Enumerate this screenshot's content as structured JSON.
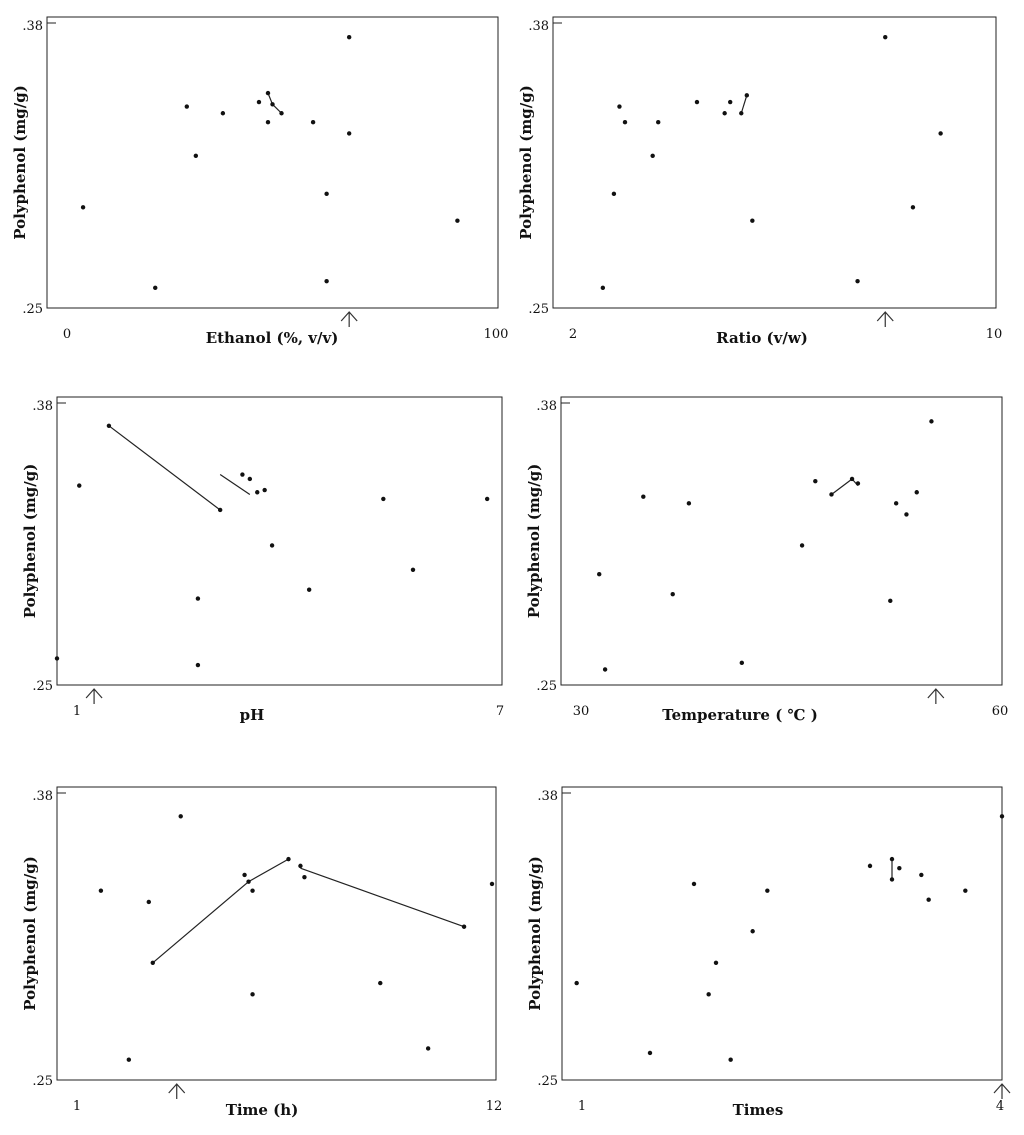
{
  "chart_data": [
    {
      "type": "scatter",
      "title": "",
      "xlabel": "Ethanol (%, v/v)",
      "ylabel": "Polyphenol (mg/g)",
      "xlim": [
        0,
        100
      ],
      "ylim": [
        0.25,
        0.38
      ],
      "x_tick_labels": [
        "0",
        "100"
      ],
      "y_tick_labels": [
        ".38",
        ".25"
      ],
      "arrow_at": 67,
      "points": [
        [
          8,
          0.295
        ],
        [
          24,
          0.259
        ],
        [
          31,
          0.34
        ],
        [
          33,
          0.318
        ],
        [
          39,
          0.337
        ],
        [
          47,
          0.342
        ],
        [
          49,
          0.346
        ],
        [
          49,
          0.333
        ],
        [
          50,
          0.341
        ],
        [
          52,
          0.337
        ],
        [
          59,
          0.333
        ],
        [
          62,
          0.262
        ],
        [
          62,
          0.301
        ],
        [
          67,
          0.371
        ],
        [
          67,
          0.328
        ],
        [
          91,
          0.289
        ]
      ],
      "segments": [
        [
          [
            49,
            0.346
          ],
          [
            50,
            0.341
          ]
        ],
        [
          [
            50,
            0.341
          ],
          [
            52,
            0.337
          ]
        ]
      ]
    },
    {
      "type": "scatter",
      "title": "",
      "xlabel": "Ratio (v/w)",
      "ylabel": "Polyphenol (mg/g)",
      "xlim": [
        2,
        10
      ],
      "ylim": [
        0.25,
        0.38
      ],
      "x_tick_labels": [
        "2",
        "10"
      ],
      "y_tick_labels": [
        ".38",
        ".25"
      ],
      "arrow_at": 8.0,
      "points": [
        [
          2.9,
          0.259
        ],
        [
          3.1,
          0.301
        ],
        [
          3.2,
          0.34
        ],
        [
          3.3,
          0.333
        ],
        [
          3.8,
          0.318
        ],
        [
          3.9,
          0.333
        ],
        [
          4.6,
          0.342
        ],
        [
          5.1,
          0.337
        ],
        [
          5.2,
          0.342
        ],
        [
          5.4,
          0.337
        ],
        [
          5.5,
          0.345
        ],
        [
          5.6,
          0.289
        ],
        [
          7.5,
          0.262
        ],
        [
          8.0,
          0.371
        ],
        [
          8.5,
          0.295
        ],
        [
          9.0,
          0.328
        ]
      ],
      "segments": [
        [
          [
            5.4,
            0.337
          ],
          [
            5.5,
            0.345
          ]
        ]
      ]
    },
    {
      "type": "scatter",
      "title": "",
      "xlabel": "pH",
      "ylabel": "Polyphenol (mg/g)",
      "xlim": [
        1,
        7
      ],
      "ylim": [
        0.25,
        0.38
      ],
      "x_tick_labels": [
        "1",
        "7"
      ],
      "y_tick_labels": [
        ".38",
        ".25"
      ],
      "arrow_at": 1.5,
      "points": [
        [
          1.0,
          0.262
        ],
        [
          1.3,
          0.34
        ],
        [
          1.7,
          0.367
        ],
        [
          2.9,
          0.259
        ],
        [
          2.9,
          0.289
        ],
        [
          3.2,
          0.329
        ],
        [
          3.5,
          0.345
        ],
        [
          3.6,
          0.343
        ],
        [
          3.7,
          0.337
        ],
        [
          3.8,
          0.338
        ],
        [
          3.9,
          0.313
        ],
        [
          4.4,
          0.293
        ],
        [
          5.4,
          0.334
        ],
        [
          5.8,
          0.302
        ],
        [
          6.8,
          0.334
        ]
      ],
      "segments": [
        [
          [
            1.7,
            0.367
          ],
          [
            3.2,
            0.329
          ]
        ],
        [
          [
            3.2,
            0.345
          ],
          [
            3.6,
            0.336
          ]
        ]
      ]
    },
    {
      "type": "scatter",
      "title": "",
      "xlabel": "Temperature ( ℃ )",
      "ylabel": "Polyphenol (mg/g)",
      "xlim": [
        30,
        60
      ],
      "ylim": [
        0.25,
        0.38
      ],
      "x_tick_labels": [
        "30",
        "60"
      ],
      "y_tick_labels": [
        ".38",
        ".25"
      ],
      "arrow_at": 55.5,
      "points": [
        [
          32.6,
          0.3
        ],
        [
          33.0,
          0.257
        ],
        [
          35.6,
          0.335
        ],
        [
          37.6,
          0.291
        ],
        [
          38.7,
          0.332
        ],
        [
          42.3,
          0.26
        ],
        [
          46.4,
          0.313
        ],
        [
          47.3,
          0.342
        ],
        [
          48.4,
          0.336
        ],
        [
          49.8,
          0.343
        ],
        [
          50.2,
          0.341
        ],
        [
          52.4,
          0.288
        ],
        [
          52.8,
          0.332
        ],
        [
          53.5,
          0.327
        ],
        [
          54.2,
          0.337
        ],
        [
          55.2,
          0.369
        ]
      ],
      "segments": [
        [
          [
            48.4,
            0.336
          ],
          [
            49.8,
            0.343
          ]
        ],
        [
          [
            49.8,
            0.343
          ],
          [
            50.2,
            0.34
          ]
        ]
      ]
    },
    {
      "type": "scatter",
      "title": "",
      "xlabel": "Time (h)",
      "ylabel": "Polyphenol (mg/g)",
      "xlim": [
        1,
        12
      ],
      "ylim": [
        0.25,
        0.38
      ],
      "x_tick_labels": [
        "1",
        "12"
      ],
      "y_tick_labels": [
        ".38",
        ".25"
      ],
      "arrow_at": 4,
      "points": [
        [
          2.1,
          0.334
        ],
        [
          2.8,
          0.259
        ],
        [
          3.3,
          0.329
        ],
        [
          3.4,
          0.302
        ],
        [
          4.1,
          0.367
        ],
        [
          5.7,
          0.341
        ],
        [
          5.8,
          0.338
        ],
        [
          5.9,
          0.334
        ],
        [
          5.9,
          0.288
        ],
        [
          6.8,
          0.348
        ],
        [
          7.1,
          0.345
        ],
        [
          7.2,
          0.34
        ],
        [
          9.1,
          0.293
        ],
        [
          10.3,
          0.264
        ],
        [
          11.2,
          0.318
        ],
        [
          11.9,
          0.337
        ]
      ],
      "segments": [
        [
          [
            3.4,
            0.302
          ],
          [
            5.8,
            0.338
          ]
        ],
        [
          [
            5.8,
            0.338
          ],
          [
            6.8,
            0.348
          ]
        ],
        [
          [
            7.1,
            0.344
          ],
          [
            11.2,
            0.318
          ]
        ]
      ]
    },
    {
      "type": "scatter",
      "title": "",
      "xlabel": "Times",
      "ylabel": "Polyphenol (mg/g)",
      "xlim": [
        1,
        4
      ],
      "ylim": [
        0.25,
        0.38
      ],
      "x_tick_labels": [
        "1",
        "4"
      ],
      "y_tick_labels": [
        ".38",
        ".25"
      ],
      "arrow_at": 4,
      "points": [
        [
          1.1,
          0.293
        ],
        [
          1.6,
          0.262
        ],
        [
          1.9,
          0.337
        ],
        [
          2.0,
          0.288
        ],
        [
          2.05,
          0.302
        ],
        [
          2.15,
          0.259
        ],
        [
          2.3,
          0.316
        ],
        [
          2.4,
          0.334
        ],
        [
          3.1,
          0.345
        ],
        [
          3.25,
          0.348
        ],
        [
          3.25,
          0.339
        ],
        [
          3.3,
          0.344
        ],
        [
          3.45,
          0.341
        ],
        [
          3.5,
          0.33
        ],
        [
          3.75,
          0.334
        ],
        [
          4.0,
          0.367
        ]
      ],
      "segments": [
        [
          [
            3.25,
            0.348
          ],
          [
            3.25,
            0.339
          ]
        ]
      ]
    }
  ]
}
